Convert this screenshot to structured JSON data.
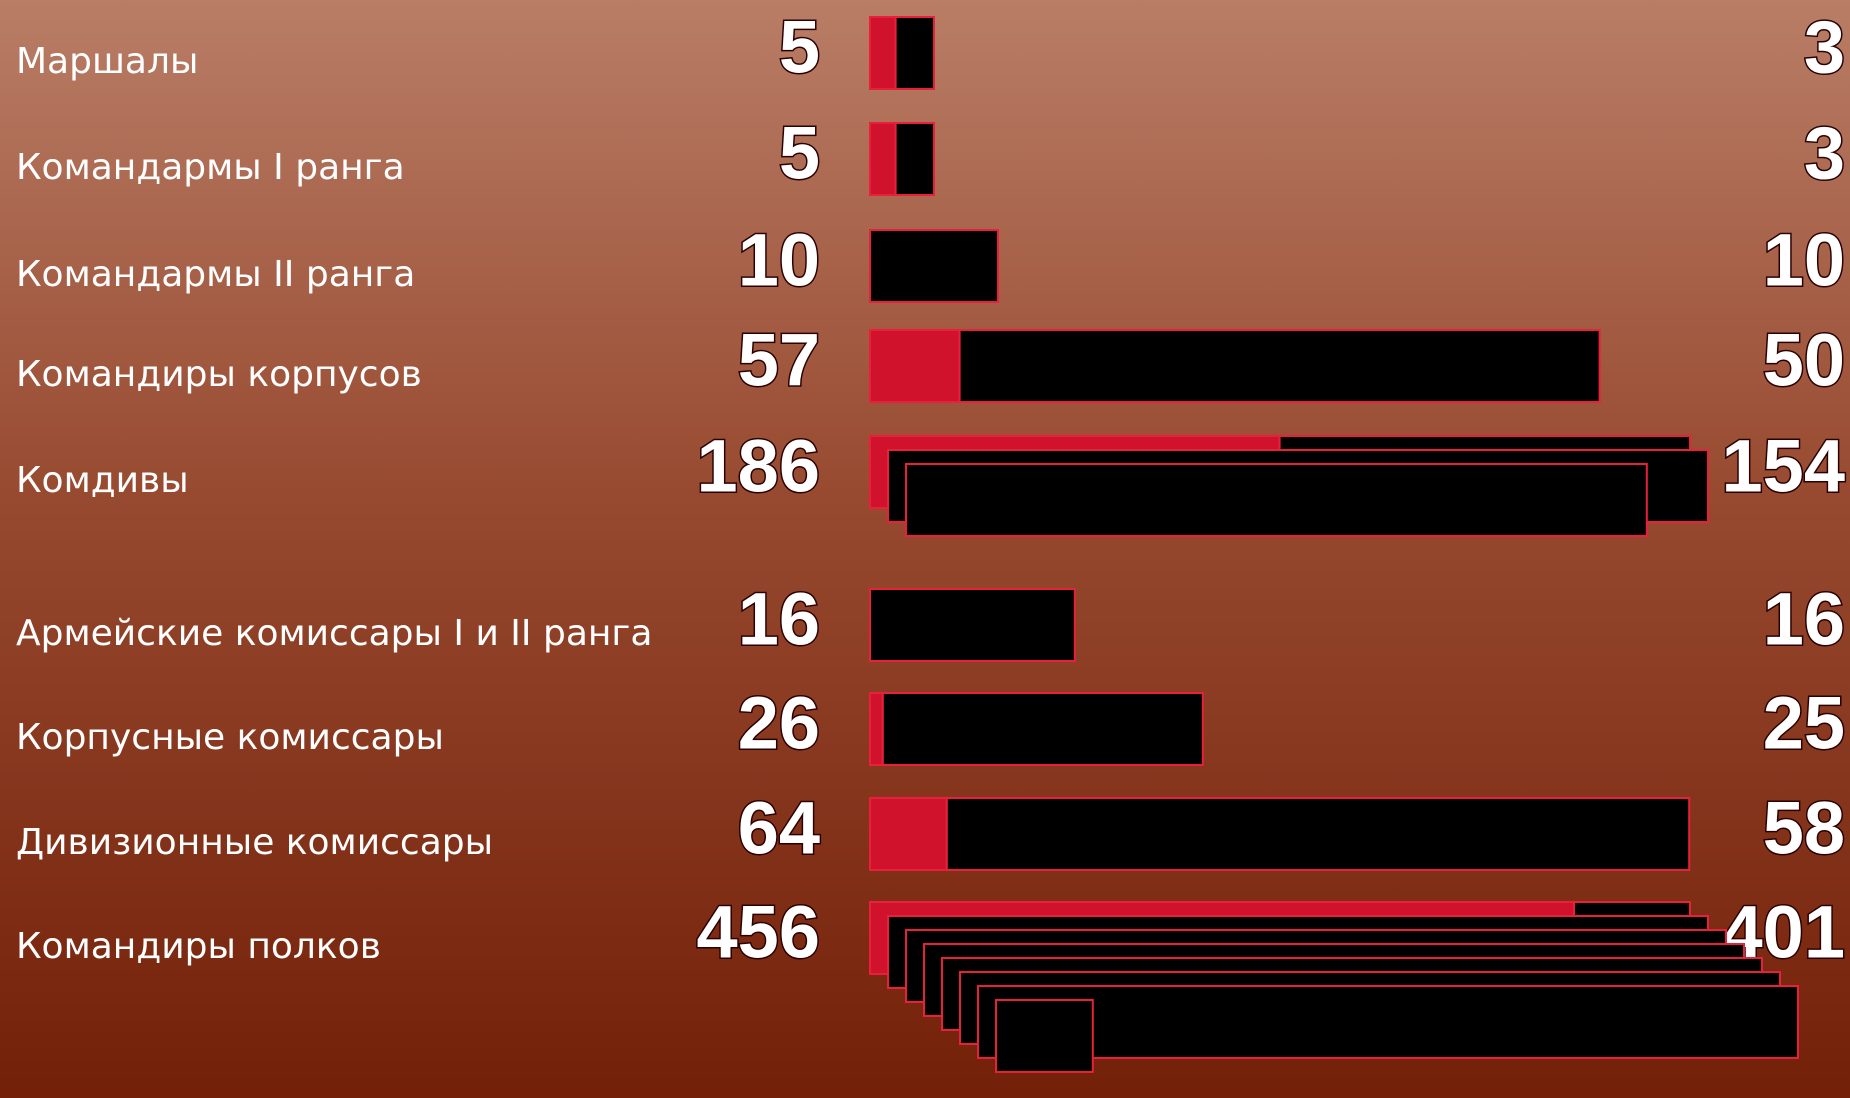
{
  "rows": [
    {
      "label": "Маршалы",
      "total": 5,
      "repressed": 3
    },
    {
      "label": "Командармы I ранга",
      "total": 5,
      "repressed": 3
    },
    {
      "label": "Командармы II ранга",
      "total": 10,
      "repressed": 10
    },
    {
      "label": "Командиры корпусов",
      "total": 57,
      "repressed": 50
    },
    {
      "label": "Комдивы",
      "total": 186,
      "repressed": 154
    },
    {
      "label": "Армейские комиссары I и II ранга",
      "total": 16,
      "repressed": 16
    },
    {
      "label": "Корпусные комиссары",
      "total": 26,
      "repressed": 25
    },
    {
      "label": "Дивизионные комиссары",
      "total": 64,
      "repressed": 58
    },
    {
      "label": "Командиры полков",
      "total": 456,
      "repressed": 401
    }
  ]
}
